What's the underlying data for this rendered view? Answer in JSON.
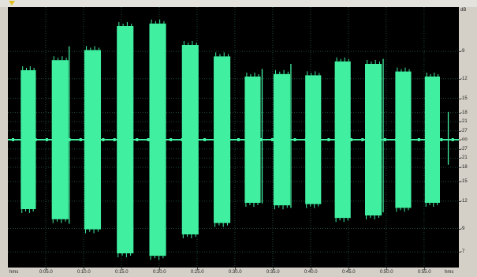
{
  "app": {
    "view": "waveform-editor",
    "colors": {
      "background": "#000000",
      "waveform": "#40f0a0",
      "grid": "#1f4a3a",
      "ruler": "#d4d0c8",
      "play_marker": "#e0c020"
    }
  },
  "db_ruler": {
    "labels": [
      {
        "text": "dB",
        "y": 0
      },
      {
        "text": "-9",
        "y": 0.17
      },
      {
        "text": "-12",
        "y": 0.275
      },
      {
        "text": "-15",
        "y": 0.35
      },
      {
        "text": "-18",
        "y": 0.405
      },
      {
        "text": "-21",
        "y": 0.44
      },
      {
        "text": "-27",
        "y": 0.475
      },
      {
        "text": "-oo",
        "y": 0.51
      },
      {
        "text": "-27",
        "y": 0.545
      },
      {
        "text": "-21",
        "y": 0.58
      },
      {
        "text": "-18",
        "y": 0.615
      },
      {
        "text": "-15",
        "y": 0.67
      },
      {
        "text": "-12",
        "y": 0.745
      },
      {
        "text": "-9",
        "y": 0.85
      },
      {
        "text": "-7",
        "y": 0.94
      }
    ]
  },
  "time_ruler": {
    "start_label": "hms",
    "end_label": "hms",
    "labels": [
      {
        "text": "0:05.0",
        "t": 5
      },
      {
        "text": "0:10.0",
        "t": 10
      },
      {
        "text": "0:15.0",
        "t": 15
      },
      {
        "text": "0:20.0",
        "t": 20
      },
      {
        "text": "0:25.0",
        "t": 25
      },
      {
        "text": "0:30.0",
        "t": 30
      },
      {
        "text": "0:35.0",
        "t": 35
      },
      {
        "text": "0:40.0",
        "t": 40
      },
      {
        "text": "0:45.0",
        "t": 45
      },
      {
        "text": "0:50.0",
        "t": 50
      },
      {
        "text": "0:55.0",
        "t": 55
      }
    ],
    "max_seconds": 59.6
  },
  "waveform": {
    "segments": [
      {
        "start": 1.7,
        "end": 3.7,
        "amp": 0.55
      },
      {
        "start": 5.8,
        "end": 8.0,
        "amp": 0.63
      },
      {
        "start": 10.1,
        "end": 12.3,
        "amp": 0.71
      },
      {
        "start": 14.4,
        "end": 16.6,
        "amp": 0.9
      },
      {
        "start": 18.7,
        "end": 20.9,
        "amp": 0.92
      },
      {
        "start": 23.0,
        "end": 25.2,
        "amp": 0.75
      },
      {
        "start": 27.2,
        "end": 29.4,
        "amp": 0.66
      },
      {
        "start": 31.3,
        "end": 33.4,
        "amp": 0.5
      },
      {
        "start": 35.1,
        "end": 37.3,
        "amp": 0.52
      },
      {
        "start": 39.3,
        "end": 41.4,
        "amp": 0.51
      },
      {
        "start": 43.2,
        "end": 45.3,
        "amp": 0.62
      },
      {
        "start": 47.2,
        "end": 49.4,
        "amp": 0.6
      },
      {
        "start": 51.2,
        "end": 53.3,
        "amp": 0.54
      },
      {
        "start": 55.1,
        "end": 57.1,
        "amp": 0.5
      }
    ],
    "spikes": [
      {
        "t": 8.1,
        "amp": 0.74
      },
      {
        "t": 33.6,
        "amp": 0.56
      },
      {
        "t": 37.4,
        "amp": 0.6
      },
      {
        "t": 49.6,
        "amp": 0.64
      },
      {
        "t": 58.2,
        "amp": 0.22
      }
    ]
  }
}
